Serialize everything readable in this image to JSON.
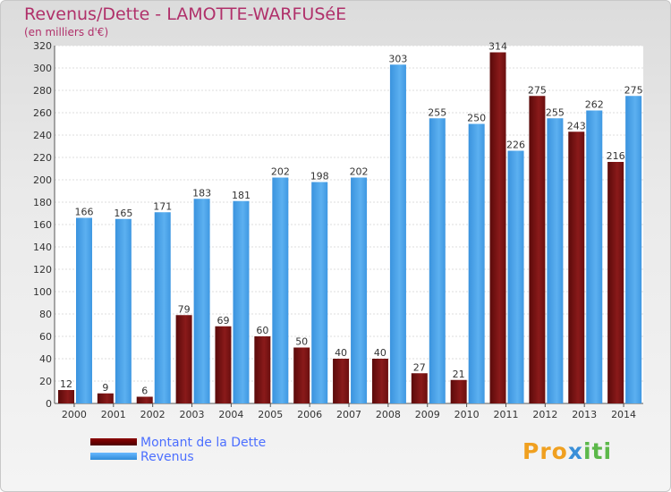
{
  "title": "Revenus/Dette - LAMOTTE-WARFUSéE",
  "subtitle": "(en milliers d'€)",
  "logo": {
    "p1": "Pro",
    "p2": "x",
    "p3": "iti"
  },
  "colors": {
    "debt": "#7a1010",
    "revenue": "#4aa3e8",
    "title": "#b0306a",
    "legend_text": "#4c6fff"
  },
  "chart_data": {
    "type": "bar",
    "categories": [
      "2000",
      "2001",
      "2002",
      "2003",
      "2004",
      "2005",
      "2006",
      "2007",
      "2008",
      "2009",
      "2010",
      "2011",
      "2012",
      "2013",
      "2014"
    ],
    "series": [
      {
        "name": "Montant de la Dette",
        "values": [
          12,
          9,
          6,
          79,
          69,
          60,
          50,
          40,
          40,
          27,
          21,
          314,
          275,
          243,
          216
        ]
      },
      {
        "name": "Revenus",
        "values": [
          166,
          165,
          171,
          183,
          181,
          202,
          198,
          202,
          303,
          255,
          250,
          226,
          255,
          262,
          275
        ]
      }
    ],
    "ylim": [
      0,
      320
    ],
    "yticks": [
      0,
      20,
      40,
      60,
      80,
      100,
      120,
      140,
      160,
      180,
      200,
      220,
      240,
      260,
      280,
      300,
      320
    ],
    "grid": true,
    "legend_position": "bottom-left"
  }
}
